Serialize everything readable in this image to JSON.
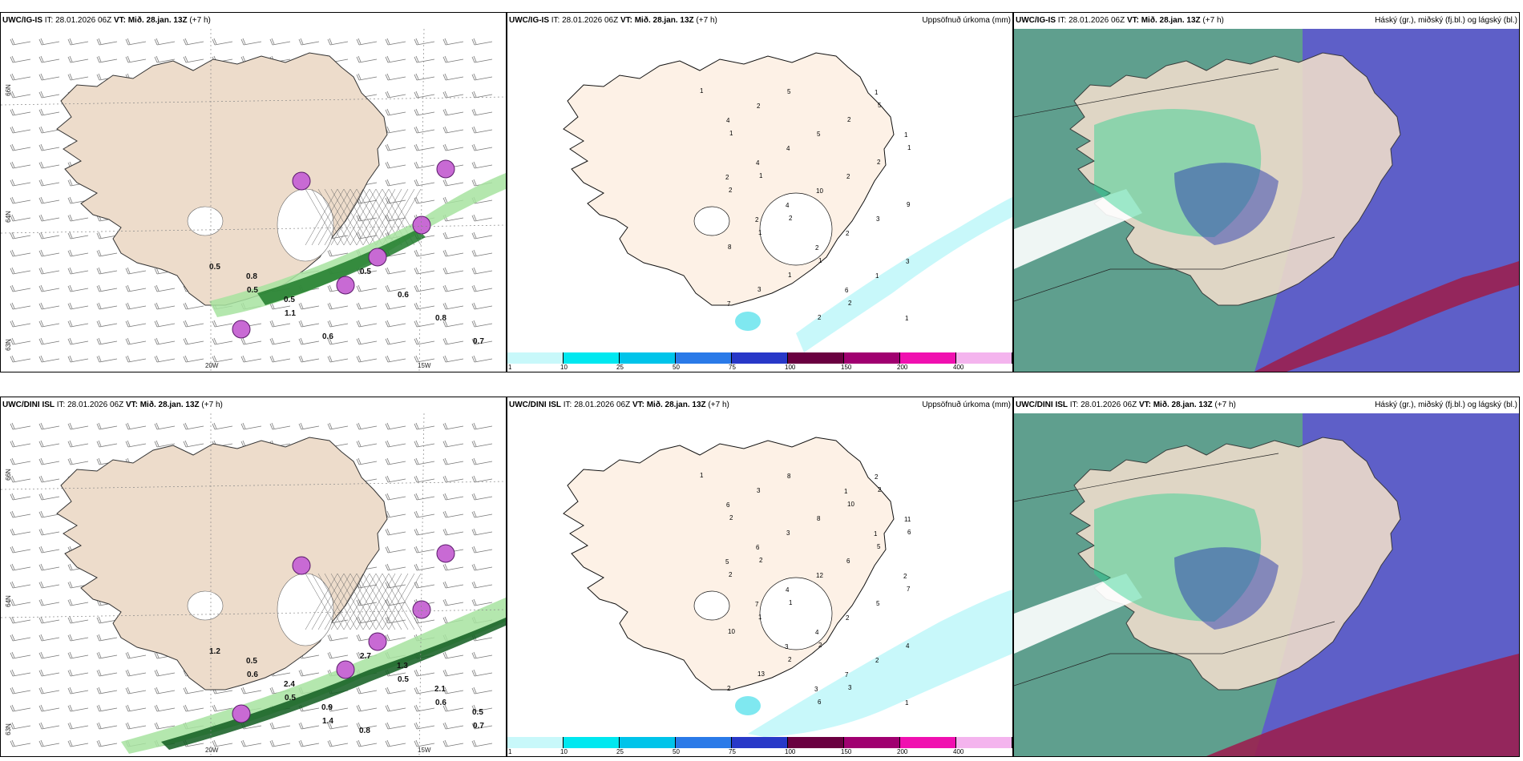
{
  "panels": {
    "r1c1": {
      "model": "UWC/IG-IS",
      "rest": " IT: 28.01.2026 06Z ",
      "vt": "VT: Mið. 28.jan. 13Z",
      "lead": " (+7 h)"
    },
    "r1c2": {
      "model": "UWC/IG-IS",
      "rest": " IT: 28.01.2026 06Z ",
      "vt": "VT: Mið. 28.jan. 13Z",
      "lead": " (+7 h)",
      "right": "Uppsöfnuð úrkoma (mm)"
    },
    "r1c3": {
      "model": "UWC/IG-IS",
      "rest": " IT: 28.01.2026 06Z ",
      "vt": "VT: Mið. 28.jan. 13Z",
      "lead": " (+7 h)",
      "right": "Háský (gr.), miðský (fj.bl.) og lágský (bl.)"
    },
    "r2c1": {
      "model": "UWC/DINI ISL",
      "rest": " IT: 28.01.2026 06Z ",
      "vt": "VT: Mið. 28.jan. 13Z",
      "lead": " (+7 h)"
    },
    "r2c2": {
      "model": "UWC/DINI ISL",
      "rest": " IT: 28.01.2026 06Z ",
      "vt": "VT: Mið. 28.jan. 13Z",
      "lead": " (+7 h)",
      "right": "Uppsöfnuð úrkoma (mm)"
    },
    "r2c3": {
      "model": "UWC/DINI ISL",
      "rest": " IT: 28.01.2026 06Z ",
      "vt": "VT: Mið. 28.jan. 13Z",
      "lead": " (+7 h)",
      "right": "Háský (gr.), miðský (fj.bl.) og lágský (bl.)"
    }
  },
  "axis_labels": {
    "lat66": "66N",
    "lat64": "64N",
    "lat63": "63N",
    "lon20": "20W",
    "lon15": "15W"
  },
  "colorbar": {
    "ticks": [
      "1",
      "10",
      "25",
      "50",
      "75",
      "100",
      "150",
      "200",
      "400"
    ],
    "colors": [
      "#c8f8fa",
      "#00e8f0",
      "#00c4ea",
      "#2a7ae8",
      "#2838c8",
      "#6a0040",
      "#a00070",
      "#f010b0",
      "#f4b4ee"
    ]
  },
  "precip_values_top": [
    "1",
    "1",
    "1",
    "2",
    "1",
    "2",
    "5",
    "1",
    "2",
    "1",
    "1",
    "2",
    "2",
    "2",
    "9",
    "8",
    "3",
    "5",
    "5",
    "2",
    "3",
    "3",
    "7",
    "2",
    "4",
    "10",
    "2",
    "1",
    "1",
    "4",
    "4",
    "4",
    "2",
    "6",
    "1",
    "1",
    "2",
    "2"
  ],
  "precip_values_bottom": [
    "1",
    "2",
    "2",
    "1",
    "2",
    "3",
    "2",
    "6",
    "2",
    "1",
    "2",
    "6",
    "10",
    "5",
    "7",
    "10",
    "13",
    "8",
    "8",
    "6",
    "5",
    "4",
    "2",
    "3",
    "3",
    "12",
    "2",
    "2",
    "1",
    "6",
    "6",
    "4",
    "4",
    "7",
    "2",
    "11",
    "5",
    "7",
    "3",
    "3",
    "1",
    "1",
    "2"
  ],
  "wind_labels_top": [
    "0.5",
    "0.5",
    "1.1",
    "0.6",
    "0.5",
    "0.6",
    "0.8",
    "0.7",
    "0.8",
    "0.5"
  ],
  "wind_labels_bottom": [
    "1.2",
    "0.6",
    "0.5",
    "1.4",
    "2.7",
    "0.5",
    "0.6",
    "0.7",
    "0.5",
    "2.4",
    "0.9",
    "0.8",
    "1.3",
    "2.1",
    "0.5"
  ]
}
